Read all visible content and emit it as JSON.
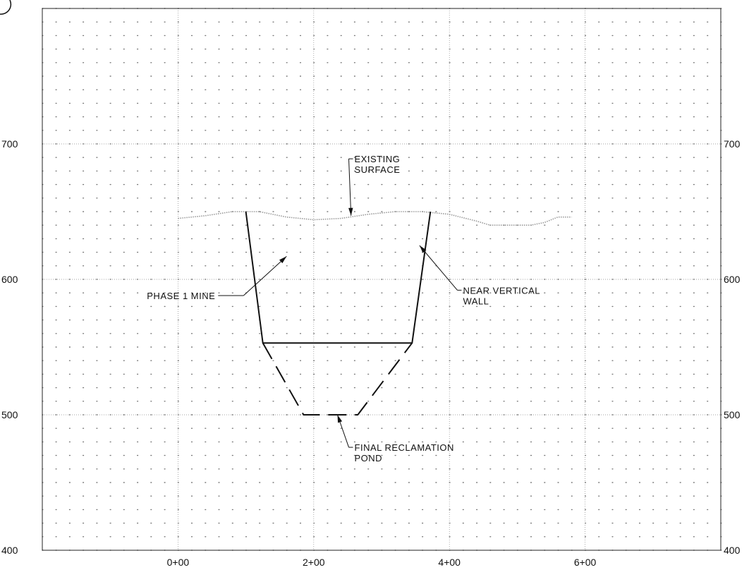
{
  "chart_data": {
    "type": "line",
    "x_axis": {
      "ticks": [
        0,
        200,
        400,
        600
      ],
      "tick_labels": [
        "0+00",
        "2+00",
        "4+00",
        "6+00"
      ],
      "range": [
        -200,
        800
      ]
    },
    "y_axis": {
      "ticks": [
        400,
        500,
        600,
        700
      ],
      "tick_labels": [
        "400",
        "500",
        "600",
        "700"
      ],
      "range": [
        400,
        800
      ]
    },
    "grid": true,
    "dot_grid": true,
    "series": [
      {
        "style": "dotted",
        "points": [
          [
            0,
            645
          ],
          [
            40,
            647
          ],
          [
            80,
            650
          ],
          [
            120,
            650
          ],
          [
            160,
            646
          ],
          [
            200,
            644
          ],
          [
            240,
            645
          ],
          [
            280,
            648
          ],
          [
            320,
            650
          ],
          [
            360,
            650
          ],
          [
            400,
            648
          ],
          [
            440,
            643
          ],
          [
            460,
            640
          ],
          [
            520,
            640
          ],
          [
            540,
            642
          ],
          [
            560,
            646
          ],
          [
            580,
            646
          ]
        ]
      },
      {
        "style": "solid",
        "points": [
          [
            100,
            650
          ],
          [
            125,
            553
          ],
          [
            345,
            553
          ],
          [
            372,
            650
          ]
        ]
      },
      {
        "style": "dashed",
        "points": [
          [
            125,
            553
          ],
          [
            185,
            500
          ],
          [
            265,
            500
          ],
          [
            345,
            553
          ]
        ]
      }
    ],
    "annotations": [
      {
        "lines": [
          "EXISTING",
          "SURFACE"
        ],
        "at": [
          260,
          689
        ],
        "arrow_to": [
          255,
          647
        ]
      },
      {
        "lines": [
          "PHASE 1 MINE"
        ],
        "at": [
          55,
          588
        ],
        "arrow_to": [
          160,
          617
        ]
      },
      {
        "lines": [
          "NEAR VERTICAL",
          "WALL"
        ],
        "at": [
          420,
          592
        ],
        "arrow_to": [
          356,
          625
        ]
      },
      {
        "lines": [
          "FINAL RECLAMATION",
          "POND"
        ],
        "at": [
          260,
          476
        ],
        "arrow_to": [
          235,
          500
        ]
      }
    ]
  }
}
